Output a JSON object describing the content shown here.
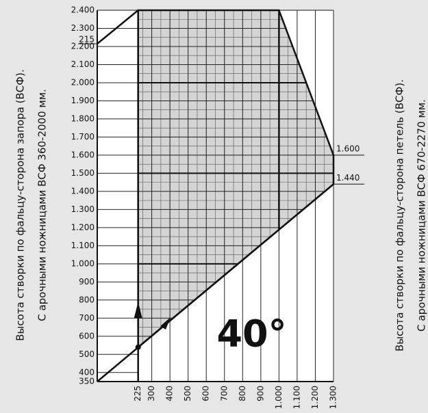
{
  "chart_data": {
    "type": "region",
    "xlim": [
      0,
      1300
    ],
    "ylim": [
      350,
      2400
    ],
    "xticks": [
      225,
      300,
      400,
      500,
      600,
      700,
      800,
      900,
      {
        "value": 1000,
        "label": "1.000"
      },
      {
        "value": 1100,
        "label": "1.100"
      },
      {
        "value": 1200,
        "label": "1.200"
      },
      {
        "value": 1300,
        "label": "1.300"
      }
    ],
    "yticks": [
      350,
      400,
      500,
      600,
      700,
      800,
      900,
      {
        "value": 1000,
        "label": "1.000"
      },
      {
        "value": 1100,
        "label": "1.100"
      },
      {
        "value": 1200,
        "label": "1.200"
      },
      {
        "value": 1300,
        "label": "1.300"
      },
      {
        "value": 1400,
        "label": "1.400"
      },
      {
        "value": 1500,
        "label": "1.500"
      },
      {
        "value": 1600,
        "label": "1.600"
      },
      {
        "value": 1700,
        "label": "1.700"
      },
      {
        "value": 1800,
        "label": "1.800"
      },
      {
        "value": 1900,
        "label": "1.900"
      },
      {
        "value": 2000,
        "label": "2.000"
      },
      {
        "value": 2100,
        "label": "2.100"
      },
      {
        "value": 2200,
        "label": "2.200"
      },
      {
        "value": 2300,
        "label": "2.300"
      },
      {
        "value": 2400,
        "label": "2.400"
      }
    ],
    "minor_step": 50,
    "major_x": [
      225,
      1000
    ],
    "major_y": [
      1000,
      1500,
      2000
    ],
    "region": {
      "color": "#d4d4d4",
      "x": [
        225,
        225,
        1000,
        1300,
        1300
      ],
      "y": [
        540,
        2400,
        2400,
        1600,
        1440
      ]
    },
    "lines": [
      {
        "x": [
          0,
          225
        ],
        "y": [
          2215,
          2400
        ]
      },
      {
        "x": [
          0,
          1300
        ],
        "y": [
          350,
          1440
        ]
      }
    ],
    "point": {
      "x": 225,
      "y": 540
    },
    "annotations": [
      {
        "text": "215"
      },
      {
        "value": 1600,
        "label": "1.600"
      },
      {
        "value": 1440,
        "label": "1.440"
      }
    ],
    "angle_label": "40°",
    "left_label": [
      "Высота створки по фальцу-сторона запора (ВСФ).",
      "С арочными ножницами ВСФ 360-2000 мм."
    ],
    "right_label": [
      "Высота створки по фальцу-сторона петель (ВСФ).",
      "С арочными ножницами ВСФ 670-2270 мм."
    ]
  }
}
